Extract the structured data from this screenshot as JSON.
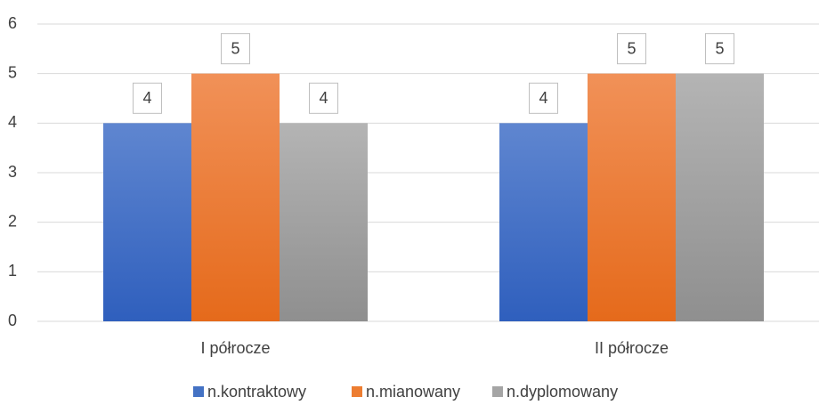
{
  "chart_data": {
    "type": "bar",
    "categories": [
      "I półrocze",
      "II półrocze"
    ],
    "series": [
      {
        "name": "n.kontraktowy",
        "color": "#4472c4",
        "values": [
          4,
          4
        ]
      },
      {
        "name": "n.mianowany",
        "color": "#ed7d31",
        "values": [
          5,
          5
        ]
      },
      {
        "name": "n.dyplomowany",
        "color": "#a5a5a5",
        "values": [
          4,
          5
        ]
      }
    ],
    "ylim": [
      0,
      6
    ],
    "yticks": [
      0,
      1,
      2,
      3,
      4,
      5,
      6
    ],
    "grid": true,
    "legend": "bottom"
  }
}
